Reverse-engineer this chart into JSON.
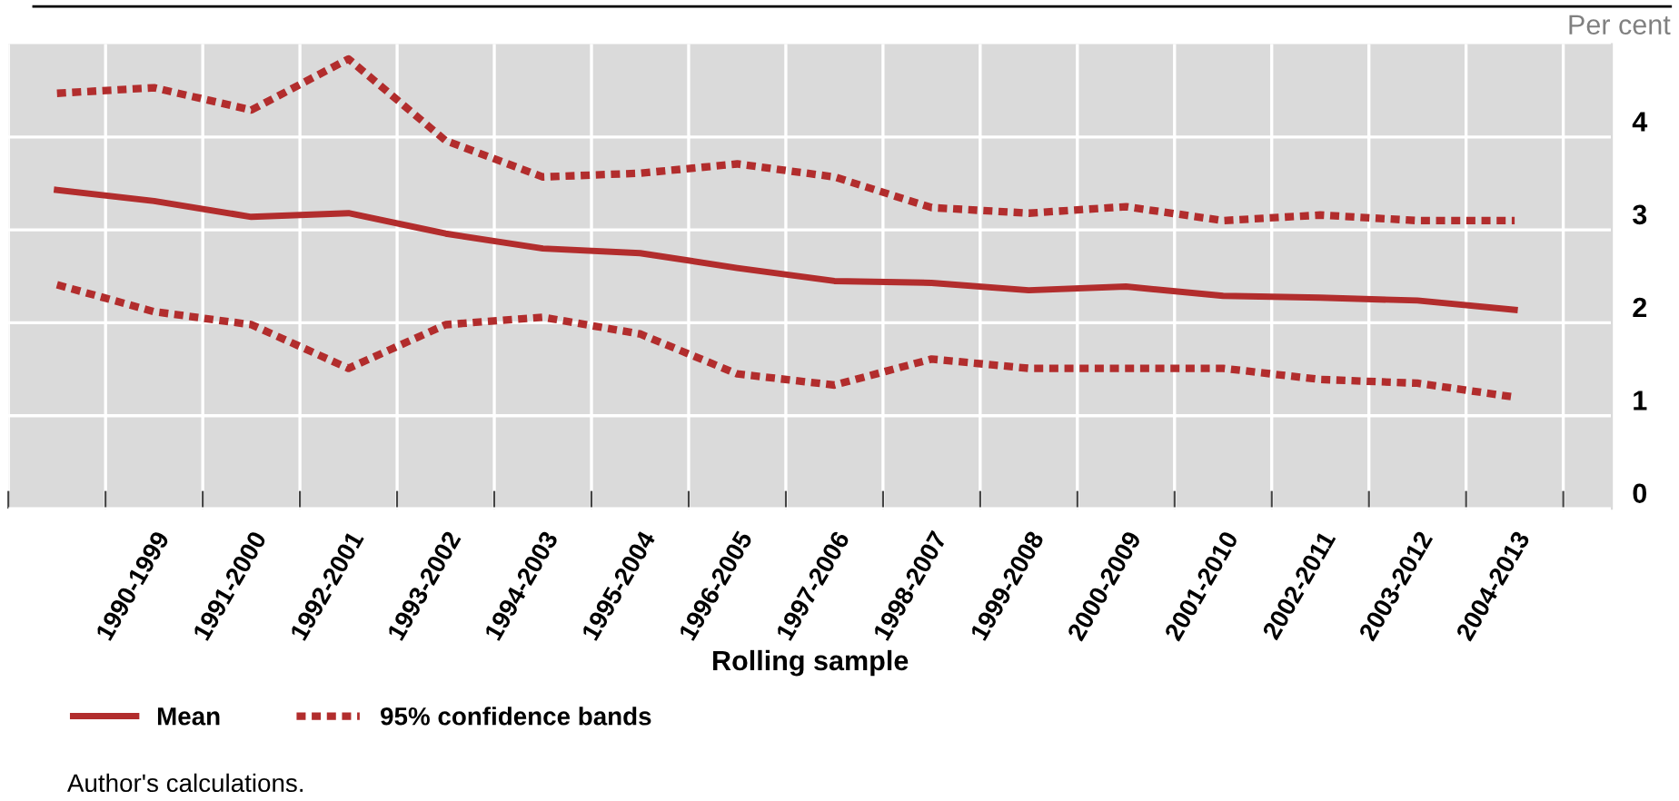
{
  "chart_data": {
    "type": "line",
    "ylabel": "Per cent",
    "xlabel": "Rolling sample",
    "categories": [
      null,
      "1990-1999",
      "1991-2000",
      "1992-2001",
      "1993-2002",
      "1994-2003",
      "1995-2004",
      "1996-2005",
      "1997-2006",
      "1998-2007",
      "1999-2008",
      "2000-2009",
      "2001-2010",
      "2002-2011",
      "2003-2012",
      "2004-2013"
    ],
    "series": [
      {
        "name": "Mean",
        "color": "#b22d2d",
        "line_style": "solid",
        "values": [
          3.43,
          3.31,
          3.14,
          3.18,
          2.96,
          2.8,
          2.75,
          2.59,
          2.45,
          2.43,
          2.35,
          2.39,
          2.29,
          2.27,
          2.24,
          2.14
        ]
      },
      {
        "name": "95% confidence bands",
        "color": "#b22d2d",
        "line_style": "dotted",
        "values": [
          4.47,
          4.53,
          4.29,
          4.84,
          3.96,
          3.57,
          3.61,
          3.71,
          3.57,
          3.24,
          3.18,
          3.25,
          3.1,
          3.16,
          3.1,
          3.1
        ]
      },
      {
        "color": "#b22d2d",
        "line_style": "dotted",
        "values": [
          2.41,
          2.12,
          1.98,
          1.51,
          1.98,
          2.06,
          1.88,
          1.45,
          1.33,
          1.61,
          1.51,
          1.51,
          1.51,
          1.39,
          1.35,
          1.2
        ]
      }
    ],
    "ylim": [
      0,
      5
    ],
    "yticks": [
      0,
      1,
      2,
      3,
      4
    ],
    "grid": true,
    "legend": "bottom left",
    "marker": "none",
    "annotations": [
      "Author's calculations."
    ]
  }
}
